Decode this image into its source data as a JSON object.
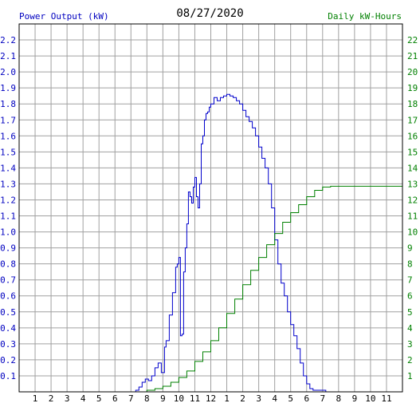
{
  "chart_data": {
    "type": "line",
    "title": "08/27/2020",
    "ylabel_left": "Power Output (kW)",
    "ylabel_right": "Daily kW-Hours",
    "colors": {
      "power": "#0000cc",
      "energy": "#008000",
      "grid": "#a0a0a0",
      "left_axis_text": "#0000c0",
      "right_axis_text": "#008000"
    },
    "x_ticks": [
      "1",
      "2",
      "3",
      "4",
      "5",
      "6",
      "7",
      "8",
      "9",
      "10",
      "11",
      "12",
      "1",
      "2",
      "3",
      "4",
      "5",
      "6",
      "7",
      "8",
      "9",
      "10",
      "11"
    ],
    "xlim": [
      0,
      24
    ],
    "ylim_left": [
      0,
      2.3
    ],
    "ylim_right": [
      0,
      23
    ],
    "yticks_left": [
      "0.1",
      "0.2",
      "0.3",
      "0.4",
      "0.5",
      "0.6",
      "0.7",
      "0.8",
      "0.9",
      "1.0",
      "1.1",
      "1.2",
      "1.3",
      "1.4",
      "1.5",
      "1.6",
      "1.7",
      "1.8",
      "1.9",
      "2.0",
      "2.1",
      "2.2"
    ],
    "yticks_right": [
      "1",
      "2",
      "3",
      "4",
      "5",
      "6",
      "7",
      "8",
      "9",
      "10",
      "11",
      "12",
      "13",
      "14",
      "15",
      "16",
      "17",
      "18",
      "19",
      "20",
      "21",
      "22"
    ],
    "grid": true,
    "series": [
      {
        "name": "Power Output (kW)",
        "axis": "left",
        "x": [
          0,
          7.0,
          7.3,
          7.5,
          7.7,
          7.9,
          8.1,
          8.3,
          8.5,
          8.7,
          8.9,
          9.1,
          9.2,
          9.4,
          9.6,
          9.8,
          9.9,
          10.0,
          10.1,
          10.2,
          10.3,
          10.4,
          10.5,
          10.6,
          10.7,
          10.8,
          10.9,
          11.0,
          11.1,
          11.2,
          11.3,
          11.4,
          11.5,
          11.6,
          11.7,
          11.8,
          11.9,
          12.0,
          12.2,
          12.4,
          12.6,
          12.8,
          13.0,
          13.2,
          13.4,
          13.6,
          13.8,
          14.0,
          14.2,
          14.4,
          14.6,
          14.8,
          15.0,
          15.2,
          15.4,
          15.6,
          15.8,
          16.0,
          16.2,
          16.4,
          16.6,
          16.8,
          17.0,
          17.2,
          17.4,
          17.6,
          17.8,
          18.0,
          18.2,
          18.4,
          18.6,
          18.8,
          19.0,
          19.2,
          19.4,
          19.6,
          19.8,
          20.0,
          20.2,
          20.5,
          20.8,
          21.0,
          24
        ],
        "y": [
          0,
          0,
          0.01,
          0.03,
          0.06,
          0.08,
          0.07,
          0.1,
          0.15,
          0.18,
          0.12,
          0.28,
          0.32,
          0.48,
          0.62,
          0.78,
          0.8,
          0.84,
          0.35,
          0.36,
          0.75,
          0.9,
          1.05,
          1.25,
          1.22,
          1.18,
          1.28,
          1.34,
          1.22,
          1.15,
          1.3,
          1.55,
          1.6,
          1.7,
          1.74,
          1.75,
          1.78,
          1.8,
          1.84,
          1.82,
          1.84,
          1.85,
          1.86,
          1.85,
          1.84,
          1.82,
          1.8,
          1.76,
          1.72,
          1.69,
          1.65,
          1.6,
          1.53,
          1.46,
          1.4,
          1.3,
          1.15,
          0.95,
          0.8,
          0.68,
          0.6,
          0.5,
          0.42,
          0.35,
          0.27,
          0.18,
          0.1,
          0.05,
          0.02,
          0.01,
          0.01,
          0.01,
          0.01,
          0.0,
          0,
          0,
          0,
          0,
          0,
          0,
          0,
          0,
          0
        ]
      },
      {
        "name": "Daily kW-Hours",
        "axis": "right",
        "x": [
          0,
          7.0,
          8.0,
          8.5,
          9.0,
          9.5,
          10.0,
          10.5,
          11.0,
          11.5,
          12.0,
          12.5,
          13.0,
          13.5,
          14.0,
          14.5,
          15.0,
          15.5,
          16.0,
          16.5,
          17.0,
          17.5,
          18.0,
          18.5,
          19.0,
          19.5,
          20.0,
          21.0,
          22.0,
          23.0,
          24.0
        ],
        "y": [
          0,
          0,
          0.1,
          0.2,
          0.35,
          0.6,
          0.9,
          1.3,
          1.9,
          2.5,
          3.2,
          4.0,
          4.9,
          5.8,
          6.7,
          7.6,
          8.4,
          9.2,
          9.9,
          10.6,
          11.2,
          11.7,
          12.2,
          12.6,
          12.8,
          12.85,
          12.85,
          12.85,
          12.85,
          12.85,
          12.85
        ]
      }
    ]
  }
}
